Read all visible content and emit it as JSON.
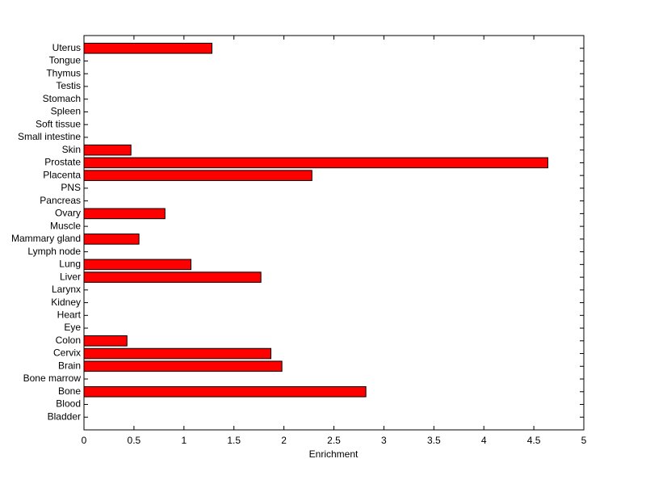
{
  "chart_data": {
    "type": "bar",
    "orientation": "horizontal",
    "xlabel": "Enrichment",
    "categories": [
      "Bladder",
      "Blood",
      "Bone",
      "Bone marrow",
      "Brain",
      "Cervix",
      "Colon",
      "Eye",
      "Heart",
      "Kidney",
      "Larynx",
      "Liver",
      "Lung",
      "Lymph node",
      "Mammary gland",
      "Muscle",
      "Ovary",
      "Pancreas",
      "PNS",
      "Placenta",
      "Prostate",
      "Skin",
      "Small intestine",
      "Soft tissue",
      "Spleen",
      "Stomach",
      "Testis",
      "Thymus",
      "Tongue",
      "Uterus"
    ],
    "values": [
      0,
      0,
      2.82,
      0,
      1.98,
      1.87,
      0.43,
      0,
      0,
      0,
      0,
      1.77,
      1.07,
      0,
      0.55,
      0,
      0.81,
      0,
      0,
      2.28,
      4.64,
      0.47,
      0,
      0,
      0,
      0,
      0,
      0,
      0,
      1.28
    ],
    "color": "#ff0000",
    "xlim": [
      0,
      5
    ],
    "xticks": [
      0,
      0.5,
      1,
      1.5,
      2,
      2.5,
      3,
      3.5,
      4,
      4.5,
      5
    ],
    "grid": false
  }
}
